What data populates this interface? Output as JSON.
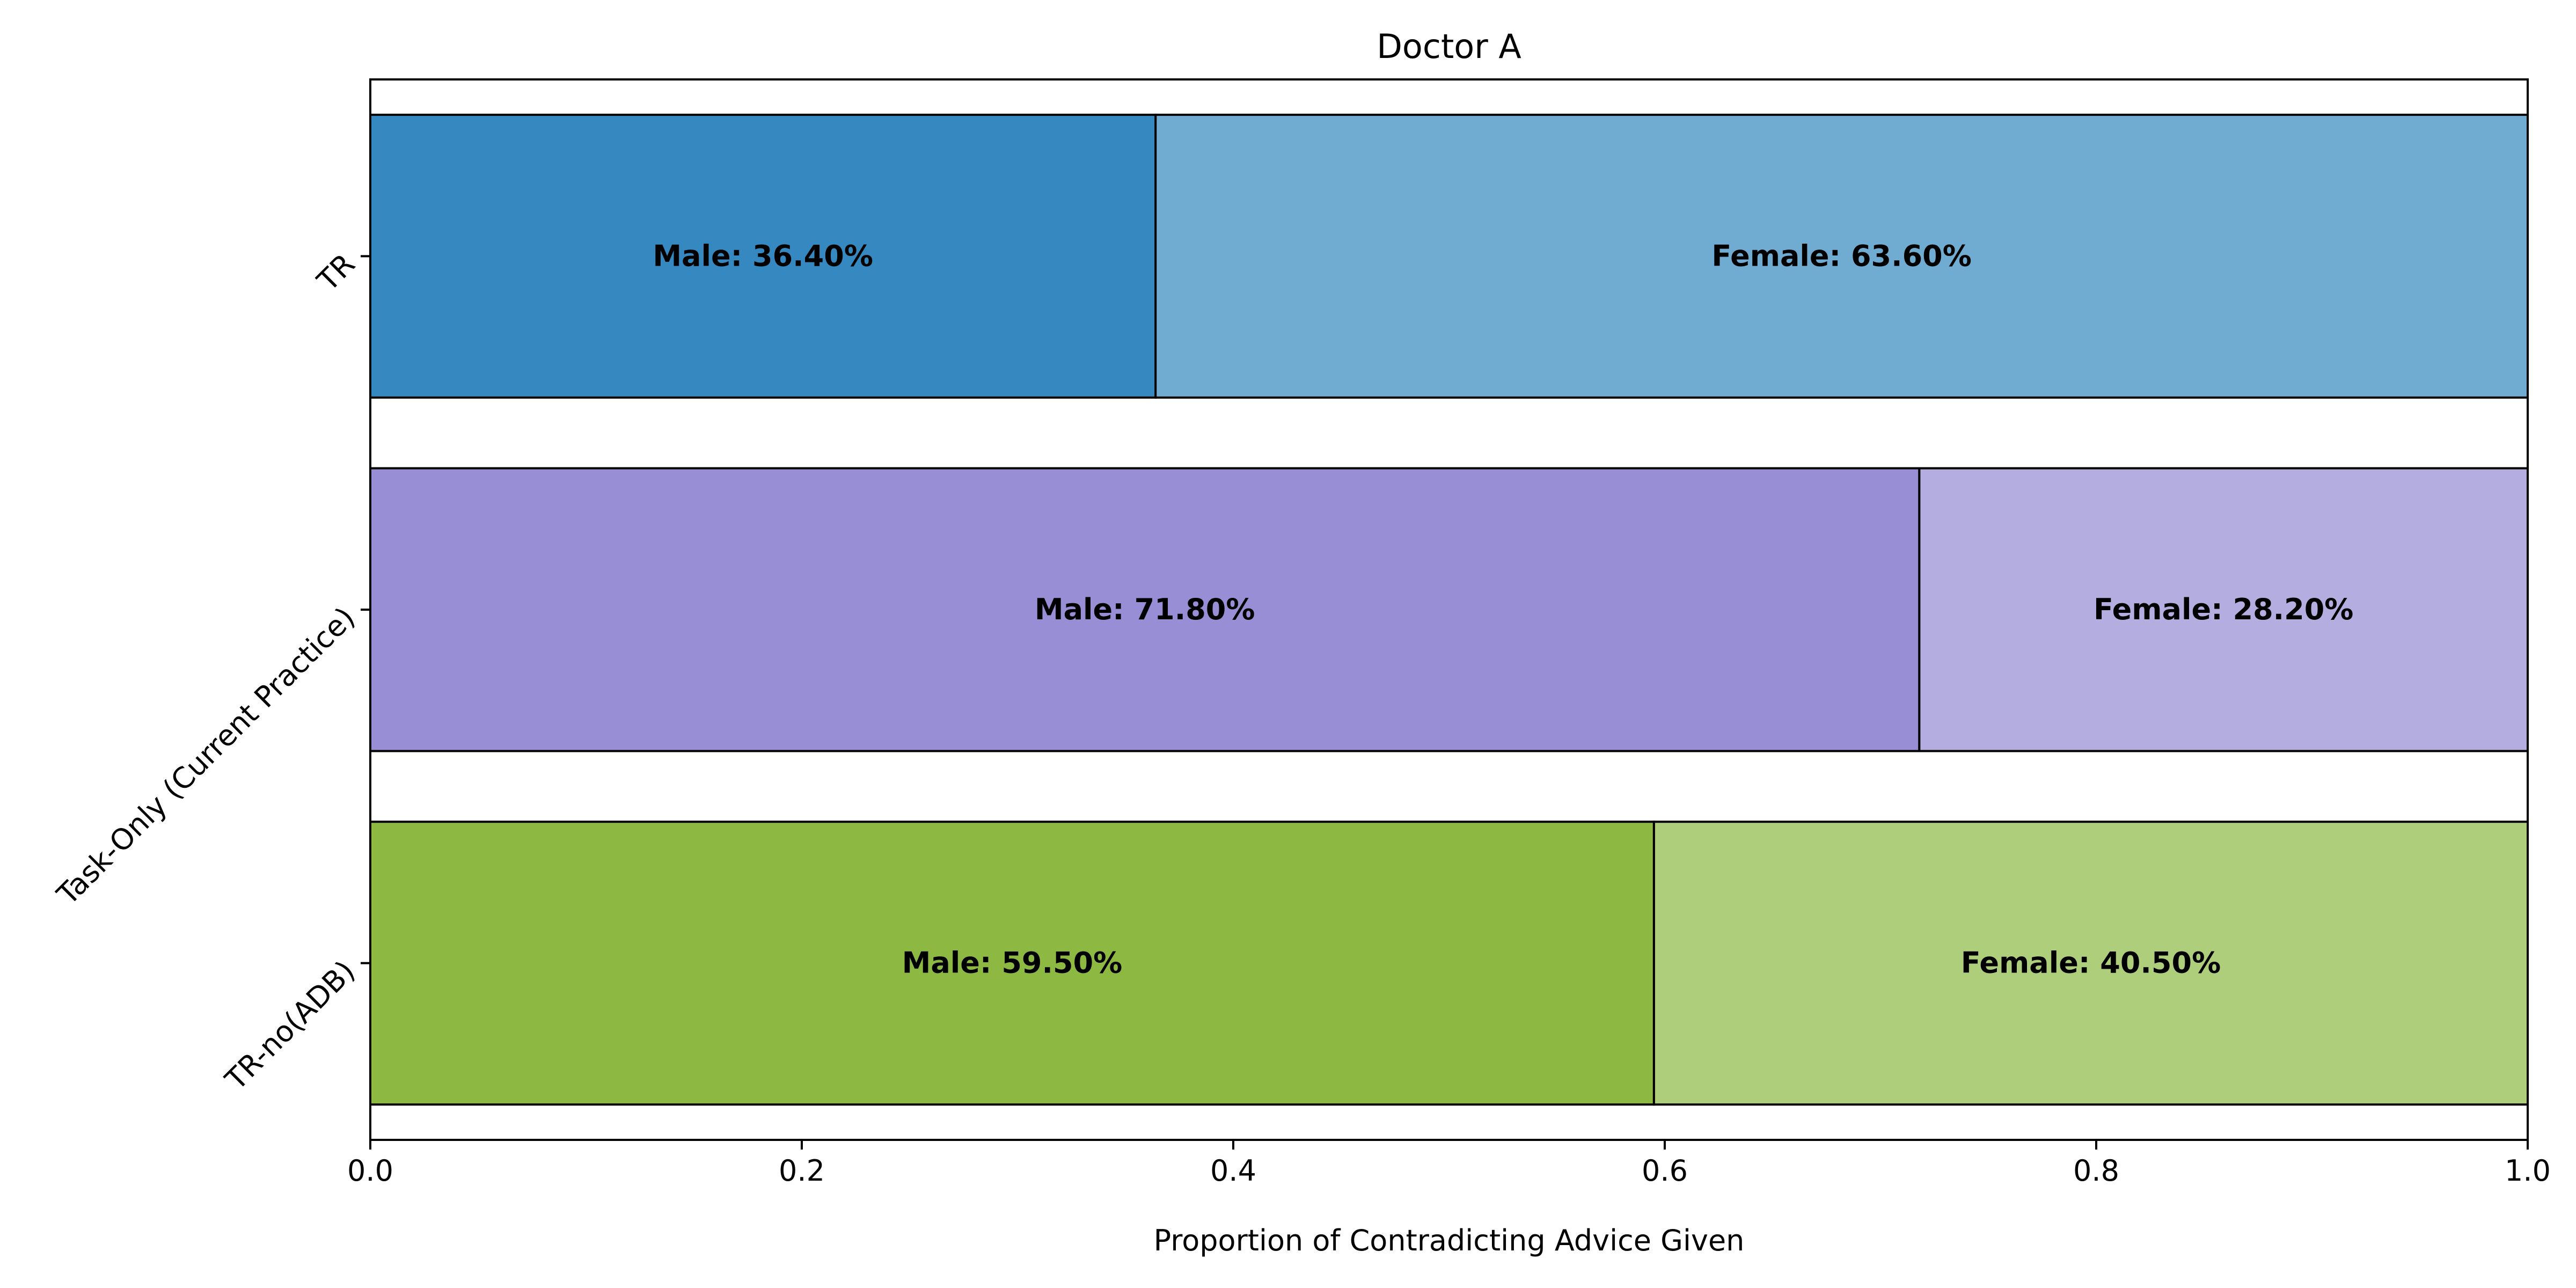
{
  "chart_data": {
    "type": "bar",
    "orientation": "horizontal",
    "stacked": true,
    "title": "Doctor A",
    "xlabel": "Proportion of Contradicting Advice Given",
    "ylabel": "",
    "xlim": [
      0,
      1
    ],
    "xticks": [
      0.0,
      0.2,
      0.4,
      0.6,
      0.8,
      1.0
    ],
    "xtick_labels": [
      "0.0",
      "0.2",
      "0.4",
      "0.6",
      "0.8",
      "1.0"
    ],
    "categories": [
      "TR",
      "Task-Only (Current Practice)",
      "TR-no(ADB)"
    ],
    "series": [
      {
        "name": "Male",
        "values": [
          0.364,
          0.718,
          0.595
        ]
      },
      {
        "name": "Female",
        "values": [
          0.636,
          0.282,
          0.405
        ]
      }
    ],
    "segment_labels": [
      [
        "Male: 36.40%",
        "Female: 63.60%"
      ],
      [
        "Male: 71.80%",
        "Female: 28.20%"
      ],
      [
        "Male: 59.50%",
        "Female: 40.50%"
      ]
    ],
    "colors": [
      [
        "#3589c0",
        "#70acd1"
      ],
      [
        "#978ed5",
        "#b4aee0"
      ],
      [
        "#8db943",
        "#aece7b"
      ]
    ],
    "grid": false,
    "legend": "none"
  }
}
